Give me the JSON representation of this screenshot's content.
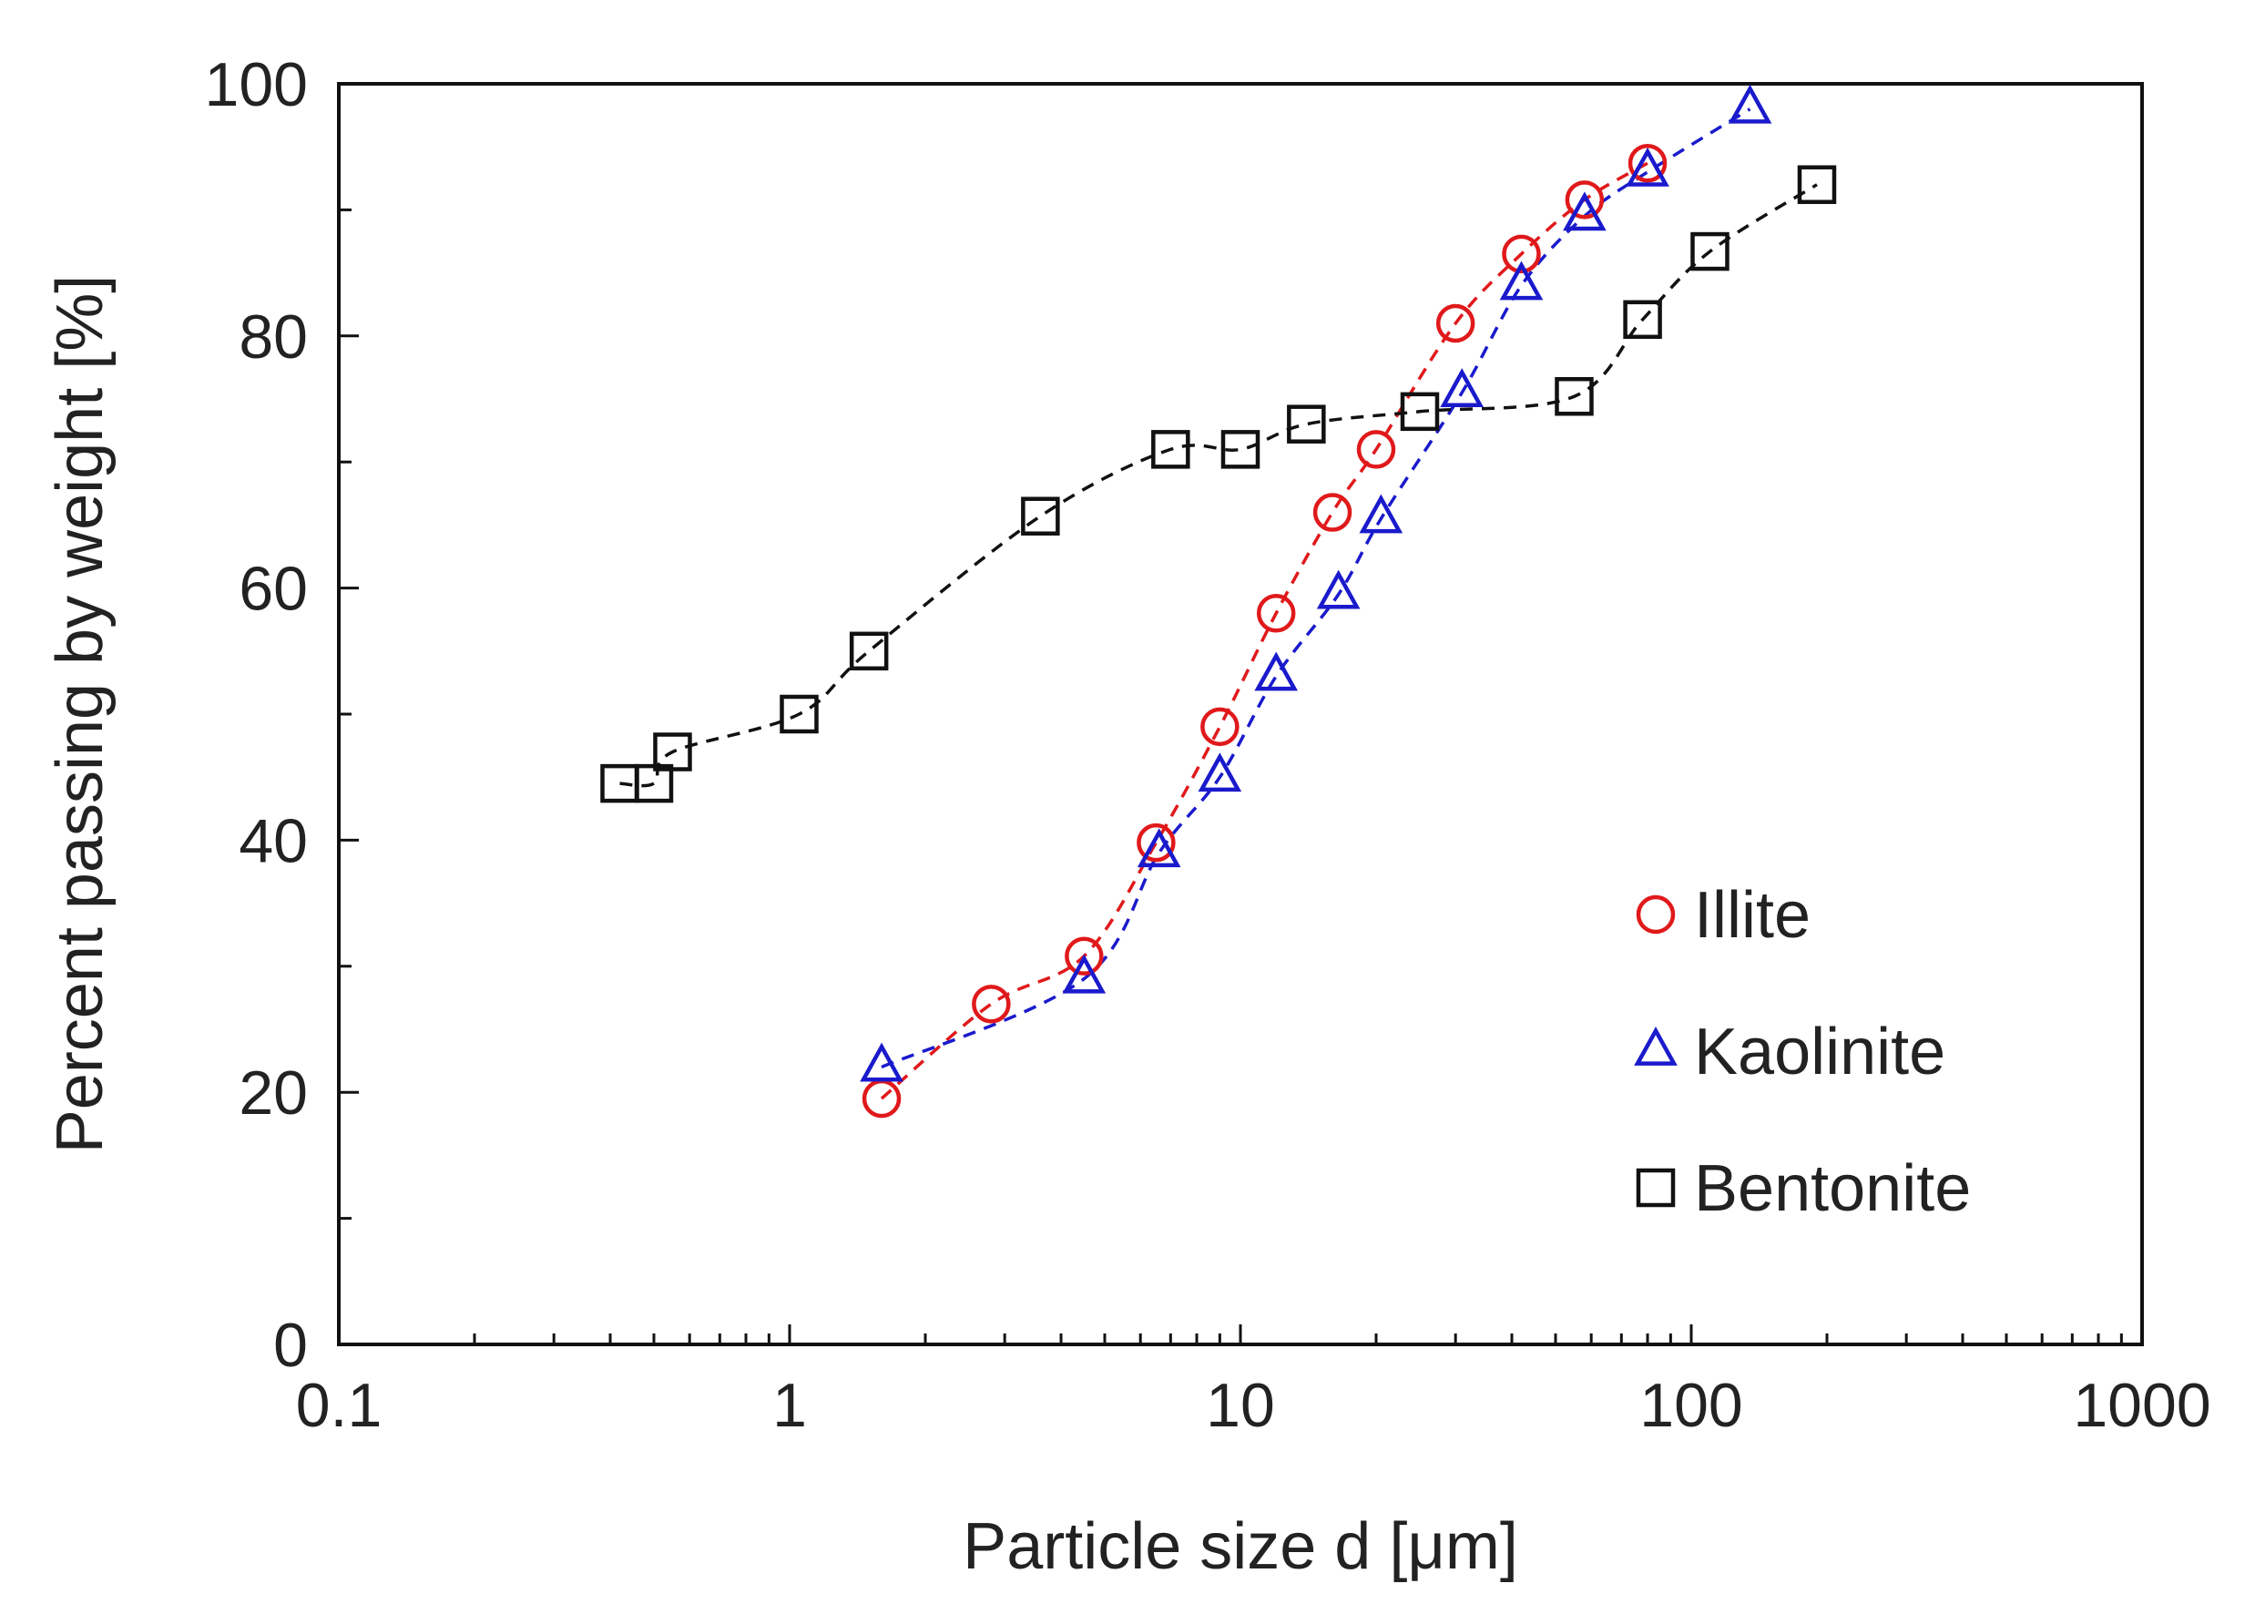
{
  "chart_data": {
    "type": "scatter",
    "title": "",
    "xlabel": "Particle size d [μm]",
    "ylabel": "Percent passing by weight  [%]",
    "xscale": "log",
    "xlim": [
      0.1,
      1000
    ],
    "ylim": [
      0,
      100
    ],
    "xticks": [
      0.1,
      1,
      10,
      100,
      1000
    ],
    "xtick_labels": [
      "0.1",
      "1",
      "10",
      "100",
      "1000"
    ],
    "yticks": [
      0,
      20,
      40,
      60,
      80,
      100
    ],
    "ytick_labels": [
      "0",
      "20",
      "40",
      "60",
      "80",
      "100"
    ],
    "grid": false,
    "legend_position": "bottom-right",
    "series": [
      {
        "name": "Illite",
        "marker": "circle",
        "color": "#e0191b",
        "line": "dashed",
        "x": [
          1.6,
          2.8,
          4.5,
          6.5,
          9.0,
          12.0,
          16.0,
          20.0,
          30.0,
          42.0,
          58.0,
          80.0
        ],
        "y": [
          19.5,
          27.0,
          30.8,
          39.8,
          49.0,
          58.0,
          66.0,
          71.0,
          81.0,
          86.5,
          90.8,
          93.7
        ]
      },
      {
        "name": "Kaolinite",
        "marker": "triangle",
        "color": "#1a1acd",
        "line": "dashed",
        "x": [
          1.6,
          4.5,
          6.6,
          9.0,
          12.0,
          16.5,
          20.5,
          31.0,
          42.0,
          58.0,
          80.0,
          135.0
        ],
        "y": [
          22.0,
          29.0,
          39.0,
          45.0,
          53.0,
          59.5,
          65.5,
          75.5,
          84.0,
          89.5,
          93.0,
          98.0
        ]
      },
      {
        "name": "Bentonite",
        "marker": "square",
        "color": "#111111",
        "line": "dashed",
        "x": [
          0.42,
          0.5,
          0.55,
          1.05,
          1.5,
          3.6,
          7.0,
          10.0,
          14.0,
          25.0,
          55.0,
          78.0,
          110.0,
          190.0
        ],
        "y": [
          44.5,
          44.5,
          47.0,
          50.0,
          55.0,
          65.7,
          71.0,
          71.0,
          73.0,
          74.0,
          75.2,
          81.3,
          86.7,
          92.0
        ]
      }
    ]
  }
}
